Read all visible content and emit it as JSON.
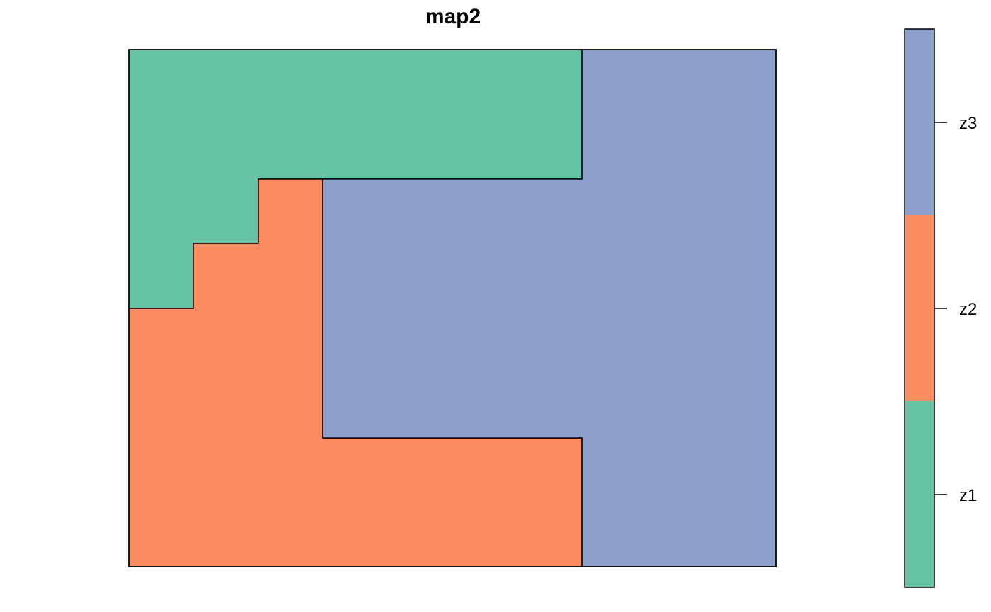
{
  "title": "map2",
  "regions": [
    {
      "id": "z1",
      "color": "#66C2A5"
    },
    {
      "id": "z2",
      "color": "#FC8D62"
    },
    {
      "id": "z3",
      "color": "#8DA0CB"
    }
  ],
  "legend": {
    "entries": [
      {
        "label": "z3",
        "color": "#8DA0CB"
      },
      {
        "label": "z2",
        "color": "#FC8D62"
      },
      {
        "label": "z1",
        "color": "#66C2A5"
      }
    ]
  }
}
